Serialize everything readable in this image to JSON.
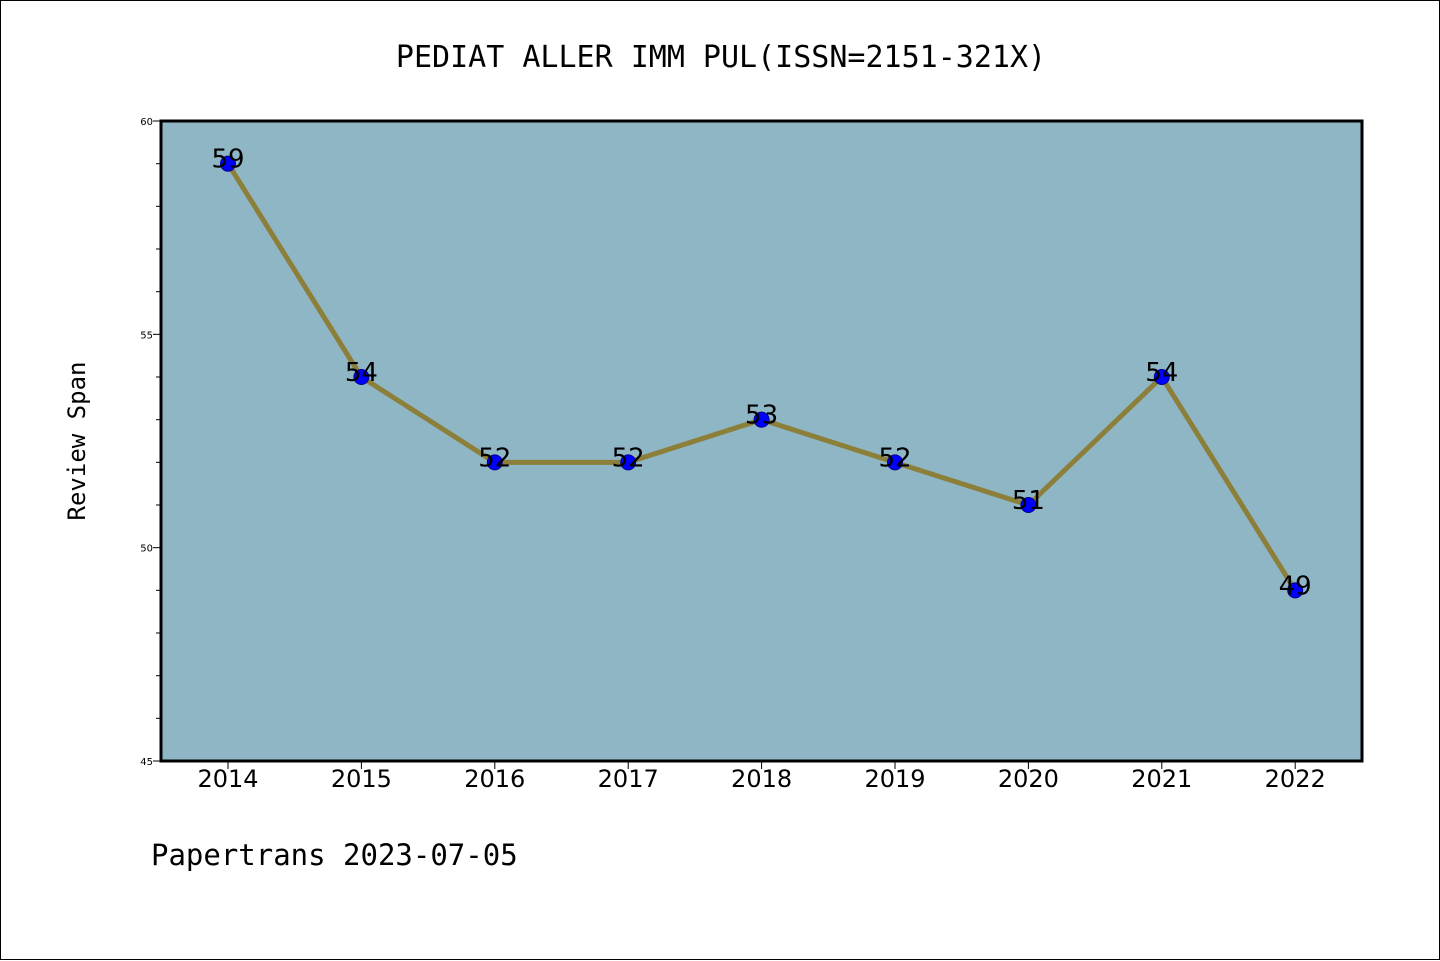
{
  "chart_data": {
    "type": "line",
    "title": "PEDIAT ALLER IMM PUL(ISSN=2151-321X)",
    "xlabel": "",
    "ylabel": "Review Span",
    "categories": [
      "2014",
      "2015",
      "2016",
      "2017",
      "2018",
      "2019",
      "2020",
      "2021",
      "2022"
    ],
    "values": [
      59,
      54,
      52,
      52,
      53,
      52,
      51,
      54,
      49
    ],
    "data_labels": [
      "59",
      "54",
      "52",
      "52",
      "53",
      "52",
      "51",
      "54",
      "49"
    ],
    "ylim": [
      45,
      60
    ],
    "y_major_ticks": [
      45,
      50,
      55,
      60
    ],
    "y_tick_labels": [
      "45",
      "50",
      "55",
      "60"
    ],
    "y_minor_step": 1,
    "grid": false,
    "legend": "none",
    "colors": {
      "plot_background": "#8fb6c5",
      "line": "#8b7f3a",
      "marker_fill": "#0000ff",
      "marker_edge": "#00008b",
      "axes": "#000000"
    }
  },
  "footer": {
    "text": "Papertrans 2023-07-05"
  }
}
